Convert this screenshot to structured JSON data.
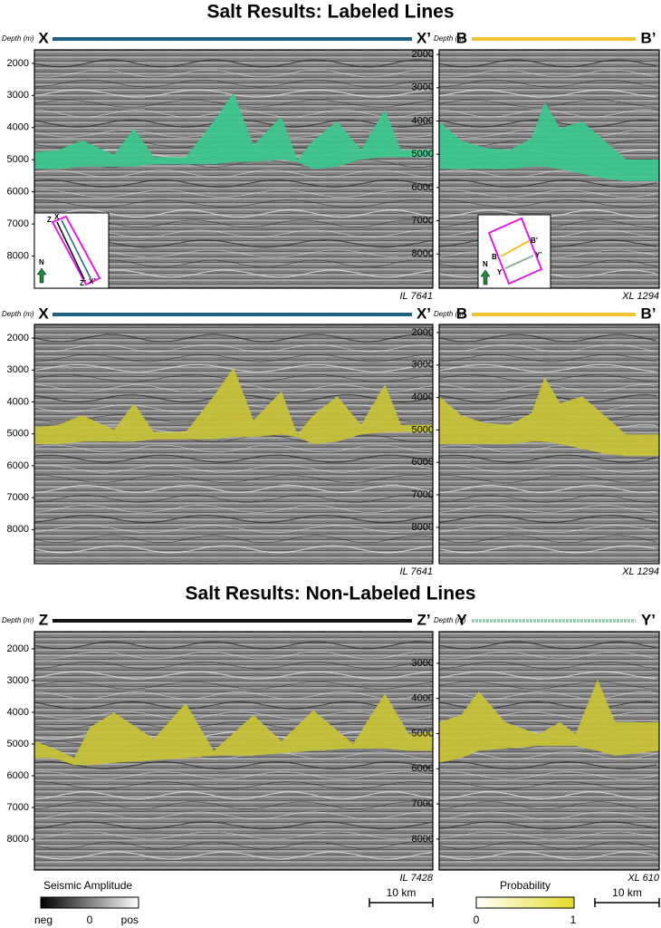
{
  "titles": [
    "Salt Results: Labeled Lines",
    "Salt Results: Non-Labeled Lines"
  ],
  "panels": [
    {
      "depth_label": "Depth (m)",
      "start": "X",
      "end": "X’",
      "line_id": "IL 7641",
      "line_color": "#1f5f82",
      "salt_color": "#3cc78c",
      "depth_lim": [
        1580,
        9000
      ],
      "depth_ticks": [
        2000,
        3000,
        4000,
        5000,
        6000,
        7000,
        8000
      ]
    },
    {
      "depth_label": "Depth (m)",
      "start": "B",
      "end": "B’",
      "line_id": "XL 1294",
      "line_color": "#f2c12e",
      "salt_color": "#3cc78c",
      "depth_lim": [
        1860,
        9030
      ],
      "depth_ticks": [
        2000,
        3000,
        4000,
        5000,
        6000,
        7000,
        8000
      ]
    },
    {
      "depth_label": "Depth (m)",
      "start": "X",
      "end": "X’",
      "line_id": "IL 7641",
      "line_color": "#1f5f82",
      "salt_color": "#c9c236",
      "depth_lim": [
        1570,
        9070
      ],
      "depth_ticks": [
        2000,
        3000,
        4000,
        5000,
        6000,
        7000,
        8000
      ]
    },
    {
      "depth_label": "Depth (m)",
      "start": "B",
      "end": "B’",
      "line_id": "XL 1294",
      "line_color": "#f2c12e",
      "salt_color": "#c9c236",
      "depth_lim": [
        1750,
        9120
      ],
      "depth_ticks": [
        2000,
        3000,
        4000,
        5000,
        6000,
        7000,
        8000
      ]
    },
    {
      "depth_label": "Depth (m)",
      "start": "Z",
      "end": "Z’",
      "line_id": "IL 7428",
      "line_color": "#111111",
      "salt_color": "#c9c236",
      "depth_lim": [
        1460,
        8970
      ],
      "depth_ticks": [
        2000,
        3000,
        4000,
        5000,
        6000,
        7000,
        8000
      ]
    },
    {
      "depth_label": "Depth (m)",
      "start": "Y",
      "end": "Y’",
      "line_id": "XL 610",
      "line_color": "#8fd9b0",
      "salt_color": "#c9c236",
      "depth_lim": [
        2100,
        8880
      ],
      "depth_ticks": [
        3000,
        4000,
        5000,
        6000,
        7000,
        8000
      ]
    }
  ],
  "insets": [
    {
      "labels": [
        "Z",
        "X",
        "Z’",
        "X’",
        "N"
      ]
    },
    {
      "labels": [
        "B",
        "B’",
        "Y",
        "Y’",
        "N"
      ]
    }
  ],
  "legends": [
    {
      "title": "Seismic Amplitude",
      "labels": [
        "neg",
        "0",
        "pos"
      ],
      "scale": "10 km"
    },
    {
      "title": "Probability",
      "labels": [
        "0",
        "1"
      ],
      "scale": "10 km"
    }
  ]
}
